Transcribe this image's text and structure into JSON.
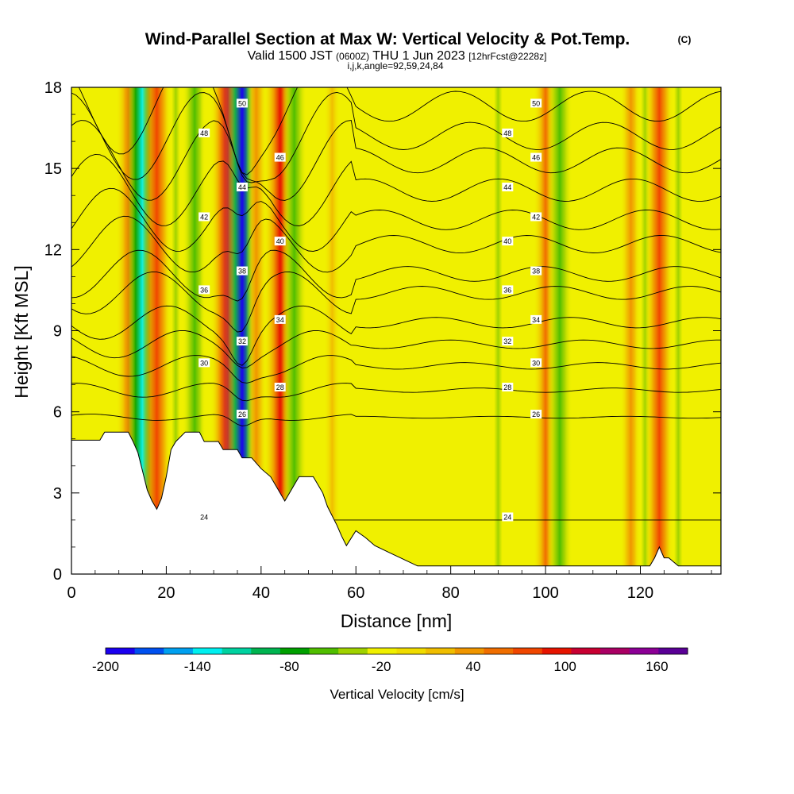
{
  "chart_data": {
    "type": "heatmap",
    "title": "Wind-Parallel Section at Max W: Vertical Velocity & Pot.Temp.",
    "copyright_mark": "(C)",
    "subtitle_parts": [
      "Valid 1500 JST ",
      "(0600Z)",
      " THU 1 Jun 2023 ",
      "[12hrFcst@2228z]"
    ],
    "subtitle_line2": "i,j,k,angle=92,59,24,84",
    "xlabel": "Distance [nm]",
    "ylabel": "Height [Kft MSL]",
    "xlim": [
      0,
      137
    ],
    "ylim": [
      0,
      18
    ],
    "x_ticks": [
      "0",
      "20",
      "40",
      "60",
      "80",
      "100",
      "120"
    ],
    "y_ticks": [
      "0",
      "3",
      "6",
      "9",
      "12",
      "15",
      "18"
    ],
    "colorbar": {
      "label": "Vertical Velocity [cm/s]",
      "min": -200,
      "max": 180,
      "step": 20,
      "tick_labels": [
        "-200",
        "-140",
        "-80",
        "-20",
        "40",
        "100",
        "160"
      ],
      "colors": [
        "#1a00f0",
        "#0050f0",
        "#00a0f0",
        "#00f0f0",
        "#00d2a0",
        "#00b450",
        "#00a000",
        "#50be00",
        "#a0d200",
        "#f0f000",
        "#f0dc00",
        "#f0be00",
        "#f09600",
        "#f06e00",
        "#f04600",
        "#e61400",
        "#c80032",
        "#aa0064",
        "#8c0096",
        "#5a0096"
      ]
    },
    "vertical_velocity_columns": [
      {
        "x": 8,
        "w": -20
      },
      {
        "x": 12,
        "w": 60
      },
      {
        "x": 15,
        "w": -140
      },
      {
        "x": 18,
        "w": 90
      },
      {
        "x": 22,
        "w": -40
      },
      {
        "x": 26,
        "w": -60
      },
      {
        "x": 29,
        "w": -20
      },
      {
        "x": 33,
        "w": 120
      },
      {
        "x": 36,
        "w": -200
      },
      {
        "x": 39,
        "w": 40
      },
      {
        "x": 44,
        "w": 100
      },
      {
        "x": 47,
        "w": -60
      },
      {
        "x": 55,
        "w": 20
      },
      {
        "x": 90,
        "w": -40
      },
      {
        "x": 100,
        "w": 60
      },
      {
        "x": 103,
        "w": -60
      },
      {
        "x": 112,
        "w": -20
      },
      {
        "x": 118,
        "w": 40
      },
      {
        "x": 121,
        "w": -40
      },
      {
        "x": 124,
        "w": 80
      },
      {
        "x": 128,
        "w": -40
      }
    ],
    "theta_contours": [
      {
        "label": "24",
        "height_kft": 2.0
      },
      {
        "label": "26",
        "height_kft": 5.8
      },
      {
        "label": "28",
        "height_kft": 6.8
      },
      {
        "label": "30",
        "height_kft": 7.7
      },
      {
        "label": "32",
        "height_kft": 8.5
      },
      {
        "label": "34",
        "height_kft": 9.3
      },
      {
        "label": "36",
        "height_kft": 10.4
      },
      {
        "label": "38",
        "height_kft": 11.1
      },
      {
        "label": "40",
        "height_kft": 12.2
      },
      {
        "label": "42",
        "height_kft": 13.1
      },
      {
        "label": "44",
        "height_kft": 14.2
      },
      {
        "label": "46",
        "height_kft": 15.3
      },
      {
        "label": "48",
        "height_kft": 16.2
      },
      {
        "label": "50",
        "height_kft": 17.3
      }
    ],
    "terrain_kft": [
      [
        0,
        4.95
      ],
      [
        6,
        4.95
      ],
      [
        7,
        5.25
      ],
      [
        12,
        5.25
      ],
      [
        13,
        4.9
      ],
      [
        14,
        4.5
      ],
      [
        15,
        3.8
      ],
      [
        16,
        3.1
      ],
      [
        17,
        2.7
      ],
      [
        18,
        2.4
      ],
      [
        19,
        2.8
      ],
      [
        20,
        3.6
      ],
      [
        21,
        4.6
      ],
      [
        22,
        4.9
      ],
      [
        24,
        5.25
      ],
      [
        27,
        5.25
      ],
      [
        28,
        4.9
      ],
      [
        31,
        4.9
      ],
      [
        32,
        4.6
      ],
      [
        35,
        4.6
      ],
      [
        36,
        4.3
      ],
      [
        38,
        4.3
      ],
      [
        40,
        3.9
      ],
      [
        42,
        3.6
      ],
      [
        44,
        3.0
      ],
      [
        45,
        2.7
      ],
      [
        46,
        3.0
      ],
      [
        48,
        3.6
      ],
      [
        51,
        3.6
      ],
      [
        53,
        3.0
      ],
      [
        54,
        2.5
      ],
      [
        56,
        1.8
      ],
      [
        57,
        1.4
      ],
      [
        58,
        1.05
      ],
      [
        60,
        1.6
      ],
      [
        62,
        1.35
      ],
      [
        64,
        1.05
      ],
      [
        67,
        0.8
      ],
      [
        70,
        0.55
      ],
      [
        73,
        0.3
      ],
      [
        122,
        0.3
      ],
      [
        123,
        0.6
      ],
      [
        124,
        1.0
      ],
      [
        125,
        0.6
      ],
      [
        126,
        0.6
      ],
      [
        128,
        0.3
      ],
      [
        137,
        0.3
      ]
    ]
  }
}
